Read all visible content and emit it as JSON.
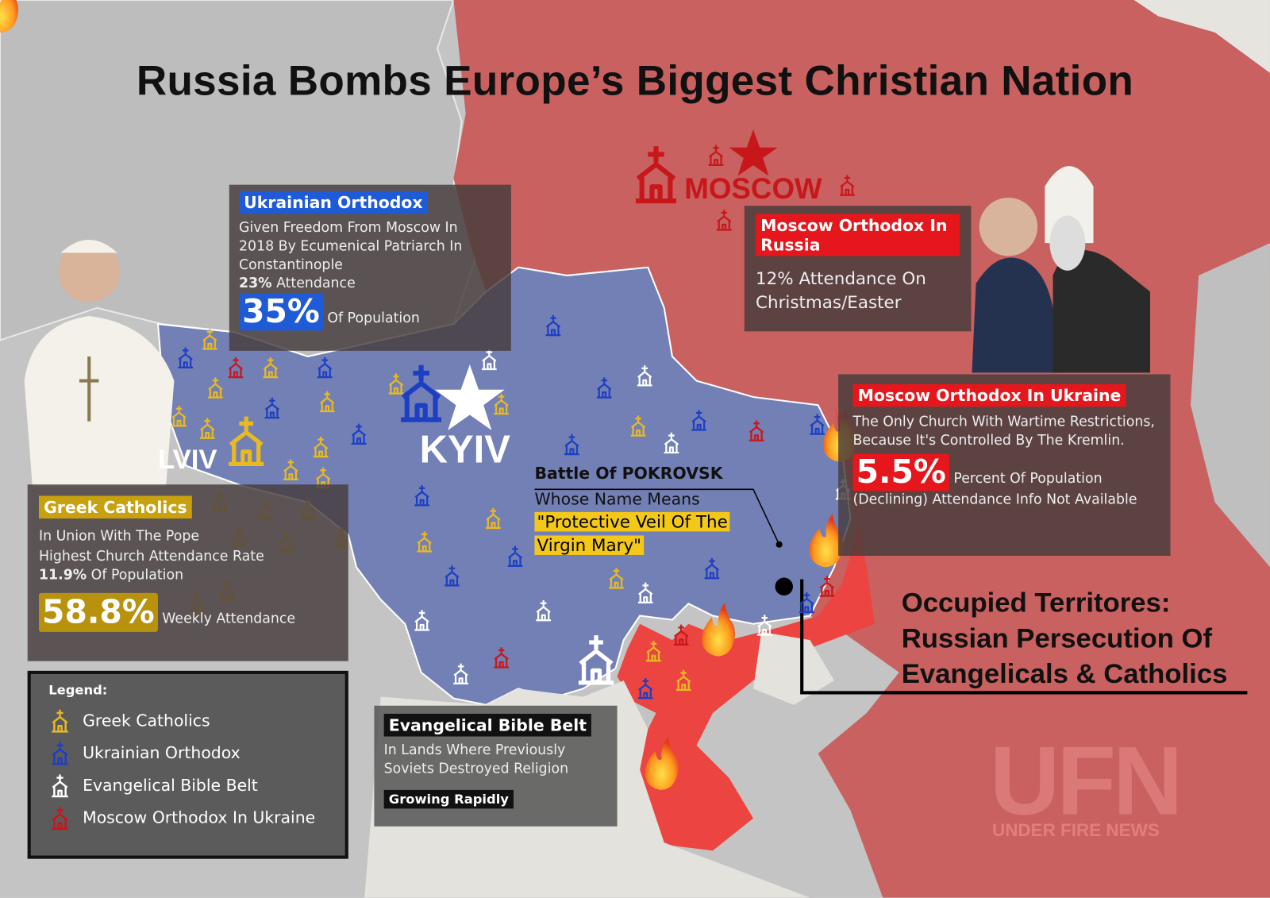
{
  "title": "Russia Bombs Europe’s Biggest Christian Nation",
  "cities": {
    "moscow": "MOSCOW",
    "kyiv": "KYIV",
    "lviv": "LVIV"
  },
  "ukrainian_orthodox": {
    "heading": "Ukrainian Orthodox",
    "description": "Given Freedom From Moscow In 2018 By Ecumenical Patriarch In Constantinople",
    "attendance_value": "23%",
    "attendance_label": "Attendance",
    "population_value": "35%",
    "population_label": "Of Population"
  },
  "moscow_orthodox_russia": {
    "heading": "Moscow Orthodox In Russia",
    "description": "12% Attendance On Christmas/Easter"
  },
  "moscow_orthodox_ukraine": {
    "heading": "Moscow Orthodox In Ukraine",
    "description": "The Only Church With Wartime Restrictions, Because It's Controlled By The Kremlin.",
    "population_value": "5.5%",
    "population_label": "Percent Of Population",
    "note": "(Declining) Attendance Info Not Available"
  },
  "greek_catholics": {
    "heading": "Greek Catholics",
    "lines": [
      "In Union With The Pope",
      "Highest Church Attendance Rate"
    ],
    "population_value": "11.9%",
    "population_label": "Of Population",
    "attendance_value": "58.8%",
    "attendance_label": "Weekly Attendance"
  },
  "pokrovsk": {
    "heading": "Battle Of POKROVSK",
    "subheading": "Whose Name Means",
    "meaning": [
      "\"Protective Veil Of The",
      "Virgin Mary\""
    ]
  },
  "occupied": {
    "lines": [
      "Occupied Territores:",
      "Russian Persecution Of",
      "Evangelicals & Catholics"
    ]
  },
  "evangelical": {
    "heading": "Evangelical Bible Belt",
    "description": "In Lands Where Previously Soviets Destroyed Religion",
    "tag": "Growing Rapidly"
  },
  "legend": {
    "title": "Legend:",
    "items": [
      "Greek Catholics",
      "Ukrainian Orthodox",
      "Evangelical Bible Belt",
      "Moscow Orthodox In Ukraine"
    ]
  },
  "watermark": {
    "logo": "UFN",
    "name": "UNDER FIRE NEWS"
  }
}
